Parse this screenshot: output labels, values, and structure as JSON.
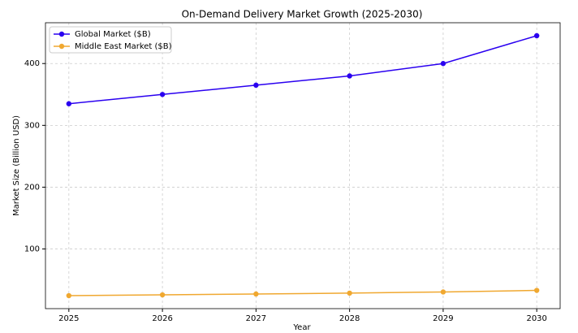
{
  "chart_data": {
    "type": "line",
    "title": "On-Demand Delivery Market Growth (2025-2030)",
    "x_label": "Year",
    "y_label": "Market Size (Billion USD)",
    "x": [
      2025,
      2026,
      2027,
      2028,
      2029,
      2030
    ],
    "series": [
      {
        "name": "Global Market ($B)",
        "color": "#2a00f0",
        "values": [
          335,
          350,
          365,
          380,
          400,
          445
        ]
      },
      {
        "name": "Middle East Market ($B)",
        "color": "#f0a830",
        "values": [
          24.5,
          25.8,
          27.2,
          28.6,
          30.5,
          33
        ]
      }
    ],
    "xlim": [
      2024.75,
      2030.25
    ],
    "xticks": [
      2025,
      2026,
      2027,
      2028,
      2029,
      2030
    ],
    "ylim": [
      3.5,
      466
    ],
    "yticks": [
      100,
      200,
      300,
      400
    ],
    "grid": true,
    "legend": "upper-left"
  }
}
